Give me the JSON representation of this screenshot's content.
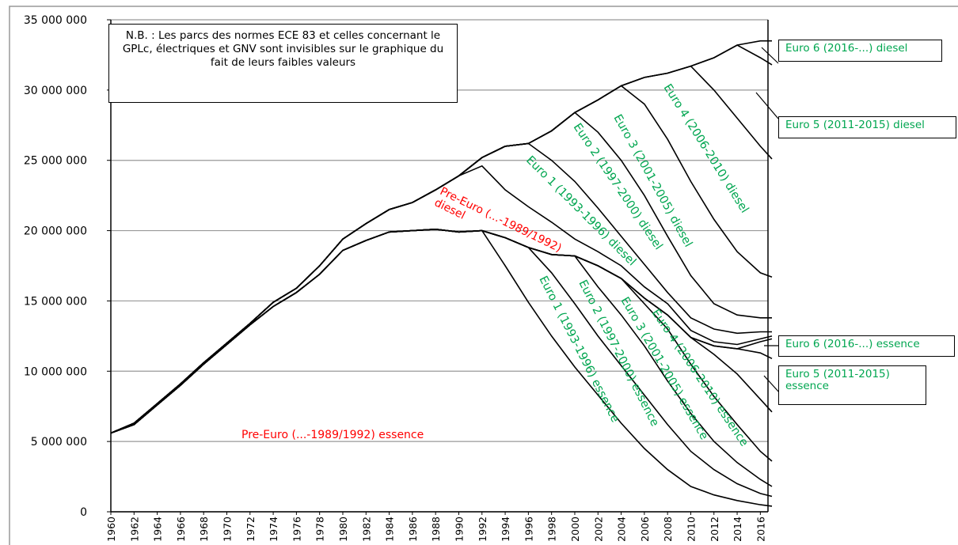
{
  "chart_data": {
    "type": "stacked_line",
    "note": "N.B. : Les parcs des normes ECE 83 et celles concernant le GPLc, électriques et GNV sont invisibles sur le graphique du fait de leurs faibles valeurs",
    "x": [
      1960,
      1962,
      1964,
      1966,
      1968,
      1970,
      1972,
      1974,
      1976,
      1978,
      1980,
      1982,
      1984,
      1986,
      1988,
      1990,
      1992,
      1994,
      1996,
      1998,
      2000,
      2002,
      2004,
      2006,
      2008,
      2010,
      2012,
      2014,
      2016,
      2017
    ],
    "xlim": [
      1960,
      2017
    ],
    "xticks": [
      1960,
      1962,
      1964,
      1966,
      1968,
      1970,
      1972,
      1974,
      1976,
      1978,
      1980,
      1982,
      1984,
      1986,
      1988,
      1990,
      1992,
      1994,
      1996,
      1998,
      2000,
      2002,
      2004,
      2006,
      2008,
      2010,
      2012,
      2014,
      2016
    ],
    "ylim": [
      0,
      35000000
    ],
    "yticks": [
      0,
      {
        "value": 5000000,
        "label": "5 000 000"
      },
      {
        "value": 10000000,
        "label": "10 000 000"
      },
      {
        "value": 15000000,
        "label": "15 000 000"
      },
      {
        "value": 20000000,
        "label": "20 000 000"
      },
      {
        "value": 25000000,
        "label": "25 000 000"
      },
      {
        "value": 30000000,
        "label": "30 000 000"
      },
      {
        "value": 35000000,
        "label": "35 000 000"
      }
    ],
    "grid": true,
    "line_color": "#000000",
    "series": [
      {
        "name": "Pre-Euro (...-1989/1992) essence",
        "color": "#ff0000",
        "values": [
          5600000,
          6200000,
          7600000,
          9000000,
          10500000,
          11900000,
          13300000,
          14600000,
          15600000,
          16900000,
          18600000,
          19300000,
          19900000,
          20000000,
          20100000,
          19900000,
          20000000,
          17500000,
          14900000,
          12500000,
          10300000,
          8300000,
          6300000,
          4500000,
          3000000,
          1800000,
          1200000,
          800000,
          500000,
          400000
        ]
      },
      {
        "name": "Euro 1 (1993-1996) essence",
        "color": "#00a650",
        "values": [
          0,
          0,
          0,
          0,
          0,
          0,
          0,
          0,
          0,
          0,
          0,
          0,
          0,
          0,
          0,
          0,
          0,
          2000000,
          3900000,
          4500000,
          4500000,
          4200000,
          4100000,
          3800000,
          3200000,
          2500000,
          1800000,
          1200000,
          800000,
          700000
        ]
      },
      {
        "name": "Euro 2 (1997-2000) essence",
        "color": "#00a650",
        "values": [
          0,
          0,
          0,
          0,
          0,
          0,
          0,
          0,
          0,
          0,
          0,
          0,
          0,
          0,
          0,
          0,
          0,
          0,
          0,
          1300000,
          3400000,
          3500000,
          3600000,
          3500000,
          3100000,
          2700000,
          2000000,
          1500000,
          1000000,
          700000
        ]
      },
      {
        "name": "Euro 3 (2001-2005) essence",
        "color": "#00a650",
        "values": [
          0,
          0,
          0,
          0,
          0,
          0,
          0,
          0,
          0,
          0,
          0,
          0,
          0,
          0,
          0,
          0,
          0,
          0,
          0,
          0,
          0,
          1500000,
          2600000,
          3000000,
          3700000,
          3500000,
          3200000,
          2700000,
          2000000,
          1800000
        ]
      },
      {
        "name": "Euro 4 (2006-2010) essence",
        "color": "#00a650",
        "values": [
          0,
          0,
          0,
          0,
          0,
          0,
          0,
          0,
          0,
          0,
          0,
          0,
          0,
          0,
          0,
          0,
          0,
          0,
          0,
          0,
          0,
          0,
          0,
          400000,
          1000000,
          1900000,
          3000000,
          3600000,
          3700000,
          3500000
        ]
      },
      {
        "name": "Euro 5 (2011-2015) essence",
        "color": "#00a650",
        "values": [
          0,
          0,
          0,
          0,
          0,
          0,
          0,
          0,
          0,
          0,
          0,
          0,
          0,
          0,
          0,
          0,
          0,
          0,
          0,
          0,
          0,
          0,
          0,
          0,
          0,
          0,
          600000,
          1800000,
          3300000,
          3800000
        ]
      },
      {
        "name": "Euro 6 (2016-...) essence",
        "color": "#00a650",
        "values": [
          0,
          0,
          0,
          0,
          0,
          0,
          0,
          0,
          0,
          0,
          0,
          0,
          0,
          0,
          0,
          0,
          0,
          0,
          0,
          0,
          0,
          0,
          0,
          0,
          0,
          0,
          0,
          0,
          800000,
          1400000
        ]
      },
      {
        "name": "Pre-Euro (...-1989/1992) diesel",
        "color": "#ff0000",
        "values": [
          0,
          100000,
          100000,
          100000,
          100000,
          100000,
          100000,
          300000,
          300000,
          600000,
          800000,
          1200000,
          1600000,
          2000000,
          2800000,
          4000000,
          4600000,
          3400000,
          2900000,
          2300000,
          1200000,
          1000000,
          900000,
          800000,
          800000,
          500000,
          300000,
          300000,
          200000,
          200000
        ]
      },
      {
        "name": "Euro 1 (1993-1996) diesel",
        "color": "#00a650",
        "values": [
          0,
          0,
          0,
          0,
          0,
          0,
          0,
          0,
          0,
          0,
          0,
          0,
          0,
          0,
          0,
          0,
          600000,
          3100000,
          4500000,
          4400000,
          4100000,
          3100000,
          2100000,
          1600000,
          800000,
          900000,
          900000,
          800000,
          500000,
          300000
        ]
      },
      {
        "name": "Euro 2 (1997-2000) diesel",
        "color": "#00a650",
        "values": [
          0,
          0,
          0,
          0,
          0,
          0,
          0,
          0,
          0,
          0,
          0,
          0,
          0,
          0,
          0,
          0,
          0,
          0,
          0,
          2100000,
          4900000,
          5400000,
          5400000,
          4900000,
          4000000,
          3000000,
          1800000,
          1300000,
          1000000,
          1000000
        ]
      },
      {
        "name": "Euro 3 (2001-2005) diesel",
        "color": "#00a650",
        "values": [
          0,
          0,
          0,
          0,
          0,
          0,
          0,
          0,
          0,
          0,
          0,
          0,
          0,
          0,
          0,
          0,
          0,
          0,
          0,
          0,
          0,
          2300000,
          5300000,
          6500000,
          6900000,
          6700000,
          6000000,
          4500000,
          3200000,
          2900000
        ]
      },
      {
        "name": "Euro 4 (2006-2010) diesel",
        "color": "#00a650",
        "values": [
          0,
          0,
          0,
          0,
          0,
          0,
          0,
          0,
          0,
          0,
          0,
          0,
          0,
          0,
          0,
          0,
          0,
          0,
          0,
          0,
          0,
          0,
          0,
          1900000,
          4700000,
          8200000,
          9200000,
          9500000,
          9000000,
          8400000
        ]
      },
      {
        "name": "Euro 5 (2011-2015) diesel",
        "color": "#00a650",
        "values": [
          0,
          0,
          0,
          0,
          0,
          0,
          0,
          0,
          0,
          0,
          0,
          0,
          0,
          0,
          0,
          0,
          0,
          0,
          0,
          0,
          0,
          0,
          0,
          0,
          0,
          0,
          2300000,
          5200000,
          6300000,
          6700000
        ]
      },
      {
        "name": "Euro 6 (2016-...) diesel",
        "color": "#00a650",
        "values": [
          0,
          0,
          0,
          0,
          0,
          0,
          0,
          0,
          0,
          0,
          0,
          0,
          0,
          0,
          0,
          0,
          0,
          0,
          0,
          0,
          0,
          0,
          0,
          0,
          0,
          0,
          0,
          0,
          1200000,
          1700000
        ]
      }
    ]
  }
}
